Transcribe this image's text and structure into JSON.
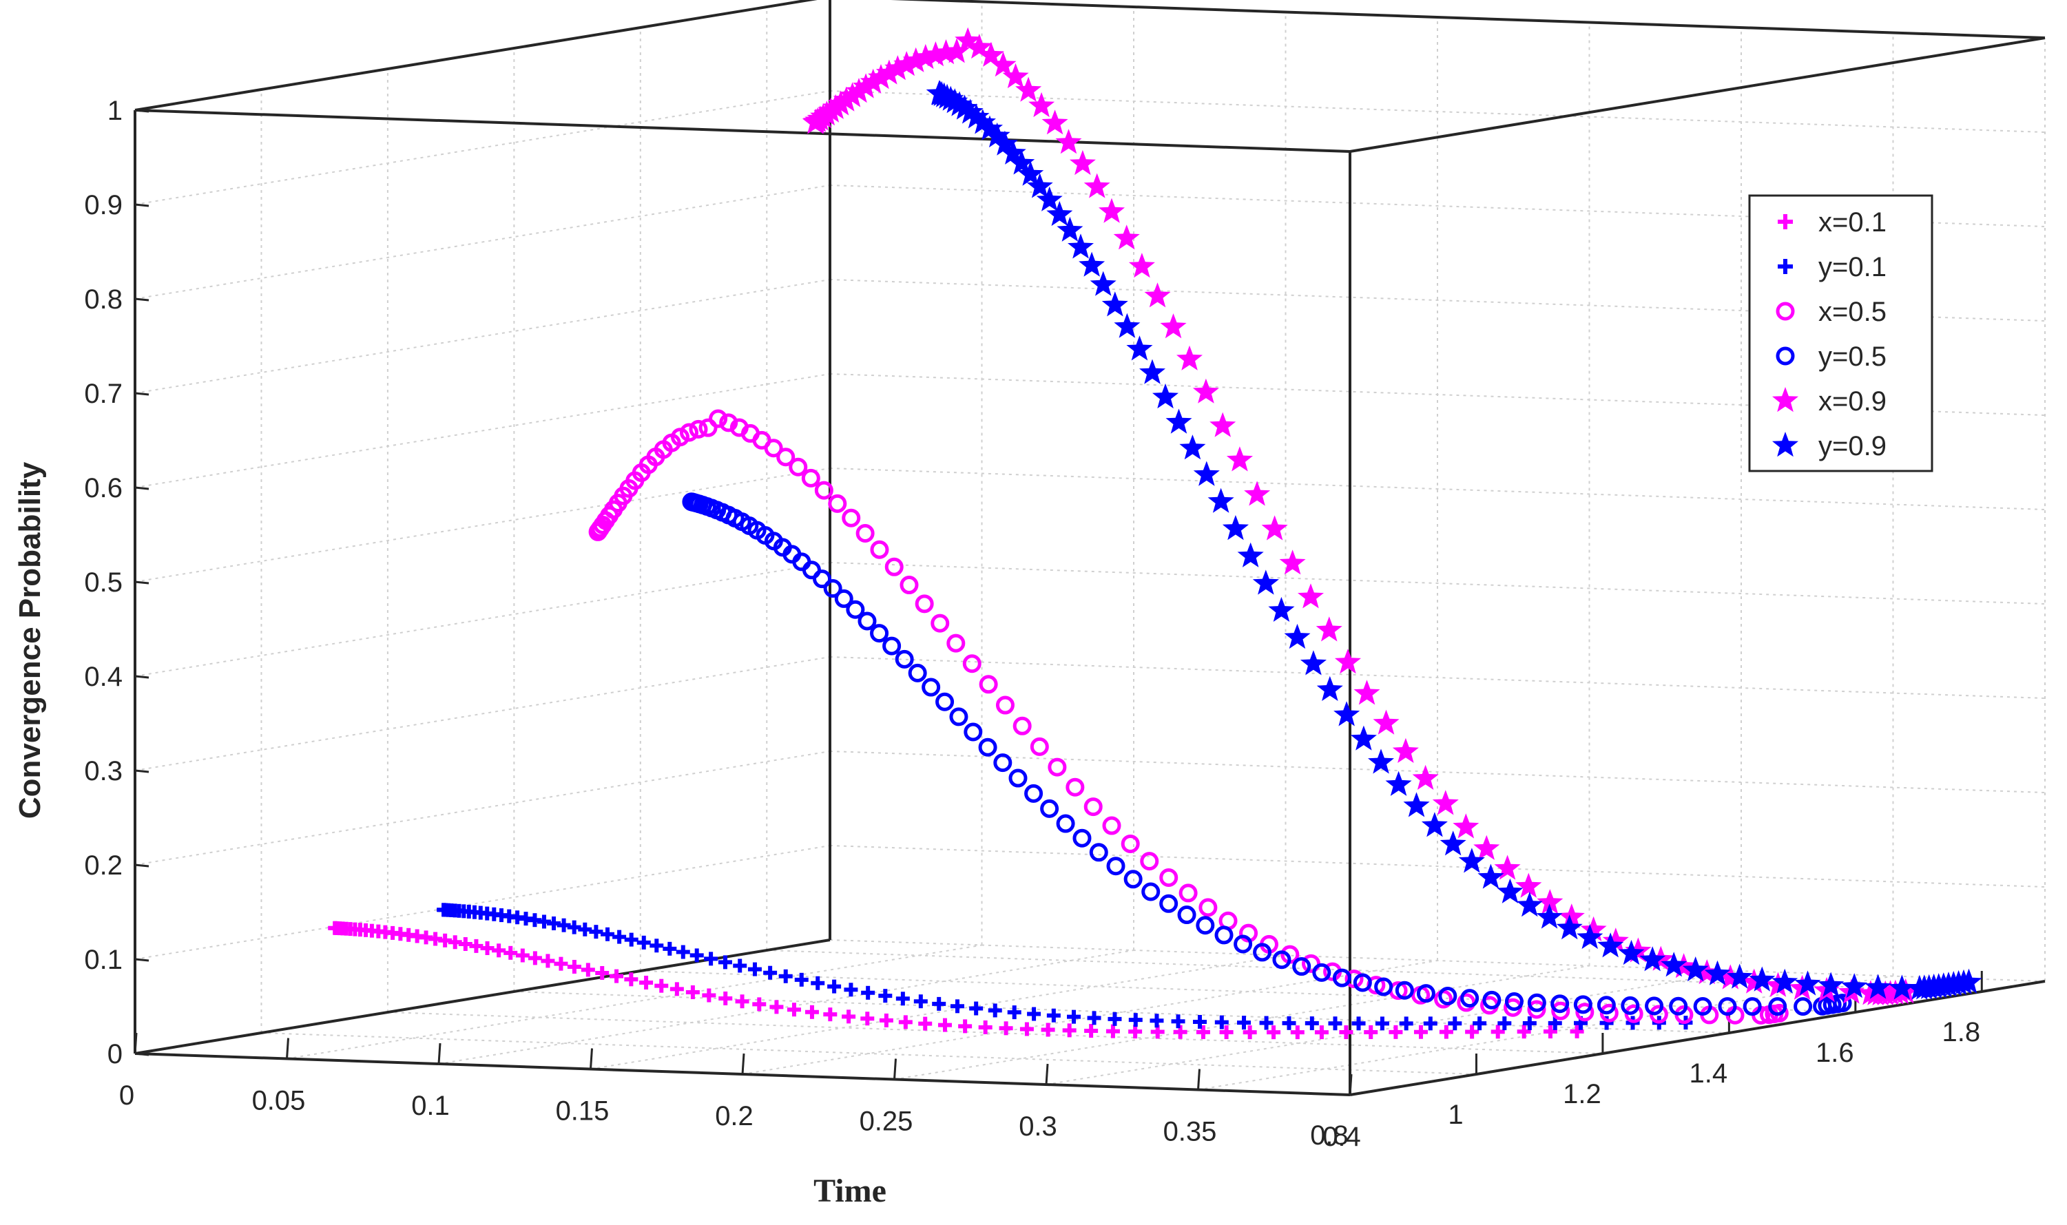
{
  "chart_data": {
    "type": "scatter3d",
    "title": "",
    "xlabel": "Time",
    "ylabel": "",
    "zlabel": "Convergence Probability",
    "xlim": [
      0,
      0.4
    ],
    "ylim": [
      0.8,
      1.9
    ],
    "zlim": [
      0,
      1
    ],
    "x_ticks": [
      "0",
      "0.05",
      "0.1",
      "0.15",
      "0.2",
      "0.25",
      "0.3",
      "0.35",
      "0.4"
    ],
    "y_ticks": [
      "0.8",
      "1",
      "1.2",
      "1.4",
      "1.6",
      "1.8"
    ],
    "z_ticks": [
      "0",
      "0.1",
      "0.2",
      "0.3",
      "0.4",
      "0.5",
      "0.6",
      "0.7",
      "0.8",
      "0.9",
      "1"
    ],
    "grid": true,
    "legend_position": "top-right",
    "series": [
      {
        "name": "x=0.1",
        "marker": "plus",
        "color": "#ff00ff",
        "x0": 0.045,
        "y0": 0.9,
        "z0": 0.115,
        "peak": 0.115,
        "t_peak": 0.0,
        "t_end": 0.33
      },
      {
        "name": "y=0.1",
        "marker": "plus",
        "color": "#0000ff",
        "x0": 0.06,
        "y0": 1.0,
        "z0": 0.125,
        "peak": 0.125,
        "t_peak": 0.0,
        "t_end": 0.33
      },
      {
        "name": "x=0.5",
        "marker": "circle",
        "color": "#ff00ff",
        "x0": 0.09,
        "y0": 1.1,
        "z0": 0.53,
        "peak": 0.64,
        "t_peak": 0.03,
        "t_end": 0.33
      },
      {
        "name": "y=0.5",
        "marker": "circle",
        "color": "#0000ff",
        "x0": 0.1,
        "y0": 1.2,
        "z0": 0.54,
        "peak": 0.54,
        "t_peak": 0.0,
        "t_end": 0.33
      },
      {
        "name": "x=0.9",
        "marker": "star",
        "color": "#ff00ff",
        "x0": 0.12,
        "y0": 1.3,
        "z0": 0.945,
        "peak": 1.02,
        "t_peak": 0.04,
        "t_end": 0.33
      },
      {
        "name": "y=0.9",
        "marker": "star",
        "color": "#0000ff",
        "x0": 0.14,
        "y0": 1.4,
        "z0": 0.955,
        "peak": 0.955,
        "t_peak": 0.0,
        "t_end": 0.33
      }
    ],
    "legend": [
      "x=0.1",
      "y=0.1",
      "x=0.5",
      "y=0.5",
      "x=0.9",
      "y=0.9"
    ]
  }
}
